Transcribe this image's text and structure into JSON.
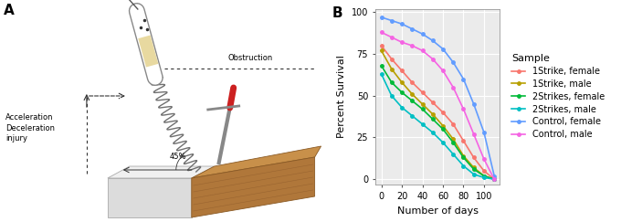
{
  "panel_labels": [
    "A",
    "B"
  ],
  "diagram": {
    "labels": {
      "obstruction": "Obstruction",
      "injury": "Acceleration\nDeceleration\ninjury",
      "angle": "45%"
    }
  },
  "chart_data": {
    "type": "line",
    "x_label": "Number of days",
    "y_label": "Percent Survival",
    "x": [
      0,
      10,
      20,
      30,
      40,
      50,
      60,
      70,
      80,
      90,
      100,
      110
    ],
    "series": [
      {
        "name": "1Strike, female",
        "color": "#F8766D",
        "values": [
          80,
          72,
          65,
          58,
          52,
          46,
          40,
          33,
          23,
          13,
          5,
          0
        ]
      },
      {
        "name": "1Strike, male",
        "color": "#B79F00",
        "values": [
          77,
          66,
          58,
          51,
          45,
          39,
          32,
          24,
          14,
          7,
          2,
          0
        ]
      },
      {
        "name": "2Strikes, female",
        "color": "#00BA38",
        "values": [
          68,
          58,
          52,
          47,
          42,
          36,
          30,
          22,
          13,
          6,
          2,
          0
        ]
      },
      {
        "name": "2Strikes, male",
        "color": "#00BFC4",
        "values": [
          63,
          50,
          43,
          38,
          33,
          28,
          22,
          15,
          8,
          3,
          1,
          0
        ]
      },
      {
        "name": "Control, female",
        "color": "#619CFF",
        "values": [
          97,
          95,
          93,
          90,
          87,
          83,
          78,
          70,
          60,
          45,
          28,
          2
        ]
      },
      {
        "name": "Control, male",
        "color": "#F564E3",
        "values": [
          88,
          85,
          82,
          80,
          77,
          72,
          65,
          55,
          42,
          27,
          12,
          0
        ]
      }
    ],
    "xlim": [
      -5.5,
      115.5
    ],
    "xticks": [
      0,
      20,
      40,
      60,
      80,
      100
    ],
    "ylim": [
      -3,
      102
    ],
    "yticks": [
      0,
      25,
      50,
      75,
      100
    ],
    "grid": true,
    "legend": "right",
    "legend_title": "Sample",
    "marker": "circle",
    "line_style": "solid"
  }
}
